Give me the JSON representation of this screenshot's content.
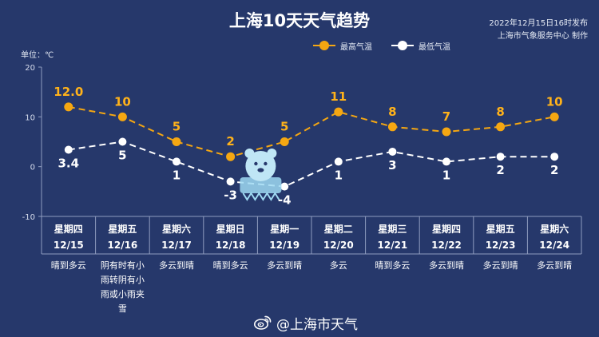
{
  "title": "上海10天天气趋势",
  "publish": {
    "line1": "2022年12月15日16时发布",
    "line2": "上海市气象服务中心 制作"
  },
  "unit_label": "单位：℃",
  "watermark": "@上海市天气",
  "colors": {
    "background": "#26386b",
    "high": "#f5a712",
    "low": "#ffffff",
    "axis": "#8f9cbf",
    "high_label": "#ffb21a"
  },
  "chart_data": {
    "type": "line",
    "title": "上海10天天气趋势",
    "ylabel": "单位：℃",
    "ylim": [
      -10,
      20
    ],
    "yticks": [
      "20",
      "10",
      "0",
      "-10"
    ],
    "legend_position": "top-right",
    "grid": false,
    "categories": [
      {
        "weekday": "星期四",
        "date": "12/15",
        "weather": [
          "晴到多云"
        ]
      },
      {
        "weekday": "星期五",
        "date": "12/16",
        "weather": [
          "阴有时有小",
          "雨转阴有小",
          "雨或小雨夹",
          "雪"
        ]
      },
      {
        "weekday": "星期六",
        "date": "12/17",
        "weather": [
          "多云到晴"
        ]
      },
      {
        "weekday": "星期日",
        "date": "12/18",
        "weather": [
          "晴到多云"
        ]
      },
      {
        "weekday": "星期一",
        "date": "12/19",
        "weather": [
          "多云到晴"
        ]
      },
      {
        "weekday": "星期二",
        "date": "12/20",
        "weather": [
          "多云"
        ]
      },
      {
        "weekday": "星期三",
        "date": "12/21",
        "weather": [
          "晴到多云"
        ]
      },
      {
        "weekday": "星期四",
        "date": "12/22",
        "weather": [
          "多云到晴"
        ]
      },
      {
        "weekday": "星期五",
        "date": "12/23",
        "weather": [
          "多云到晴"
        ]
      },
      {
        "weekday": "星期六",
        "date": "12/24",
        "weather": [
          "多云到晴"
        ]
      }
    ],
    "series": [
      {
        "name": "最高气温",
        "values": [
          12,
          10,
          5,
          2,
          5,
          11,
          8,
          7,
          8,
          10
        ],
        "labels": [
          "12.0",
          "10",
          "5",
          "2",
          "5",
          "11",
          "8",
          "7",
          "8",
          "10"
        ]
      },
      {
        "name": "最低气温",
        "values": [
          3.4,
          5,
          1,
          -3,
          -4,
          1,
          3,
          1,
          2,
          2
        ],
        "labels": [
          "3.4",
          "5",
          "1",
          "-3",
          "-4",
          "1",
          "3",
          "1",
          "2",
          "2"
        ]
      }
    ]
  }
}
